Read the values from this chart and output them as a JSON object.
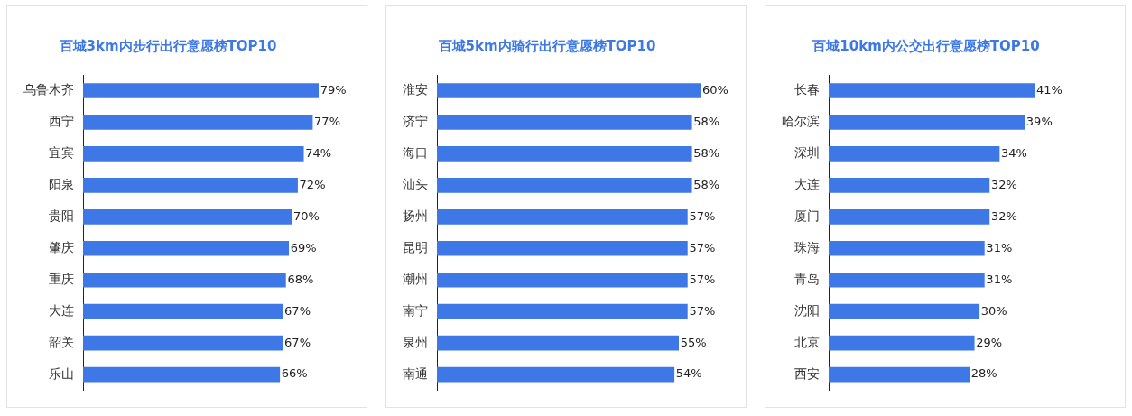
{
  "chart_data": [
    {
      "type": "bar",
      "orientation": "horizontal",
      "title": "百城3km内步行出行意愿榜TOP10",
      "categories": [
        "乌鲁木齐",
        "西宁",
        "宜宾",
        "阳泉",
        "贵阳",
        "肇庆",
        "重庆",
        "大连",
        "韶关",
        "乐山"
      ],
      "values": [
        79,
        77,
        74,
        72,
        70,
        69,
        68,
        67,
        67,
        66
      ],
      "value_labels": [
        "79%",
        "77%",
        "74%",
        "72%",
        "70%",
        "69%",
        "68%",
        "67%",
        "67%",
        "66%"
      ],
      "color": "#3d78e6",
      "grid": false,
      "legend": false,
      "tick_labels": "y"
    },
    {
      "type": "bar",
      "orientation": "horizontal",
      "title": "百城5km内骑行出行意愿榜TOP10",
      "categories": [
        "淮安",
        "济宁",
        "海口",
        "汕头",
        "扬州",
        "昆明",
        "潮州",
        "南宁",
        "泉州",
        "南通"
      ],
      "values": [
        60,
        58,
        58,
        58,
        57,
        57,
        57,
        57,
        55,
        54
      ],
      "value_labels": [
        "60%",
        "58%",
        "58%",
        "58%",
        "57%",
        "57%",
        "57%",
        "57%",
        "55%",
        "54%"
      ],
      "color": "#3d78e6",
      "grid": false,
      "legend": false,
      "tick_labels": "y"
    },
    {
      "type": "bar",
      "orientation": "horizontal",
      "title": "百城10km内公交出行意愿榜TOP10",
      "categories": [
        "长春",
        "哈尔滨",
        "深圳",
        "大连",
        "厦门",
        "珠海",
        "青岛",
        "沈阳",
        "北京",
        "西安"
      ],
      "values": [
        41,
        39,
        34,
        32,
        32,
        31,
        31,
        30,
        29,
        28
      ],
      "value_labels": [
        "41%",
        "39%",
        "34%",
        "32%",
        "32%",
        "31%",
        "31%",
        "30%",
        "29%",
        "28%"
      ],
      "color": "#3d78e6",
      "grid": false,
      "legend": false,
      "tick_labels": "y"
    }
  ]
}
